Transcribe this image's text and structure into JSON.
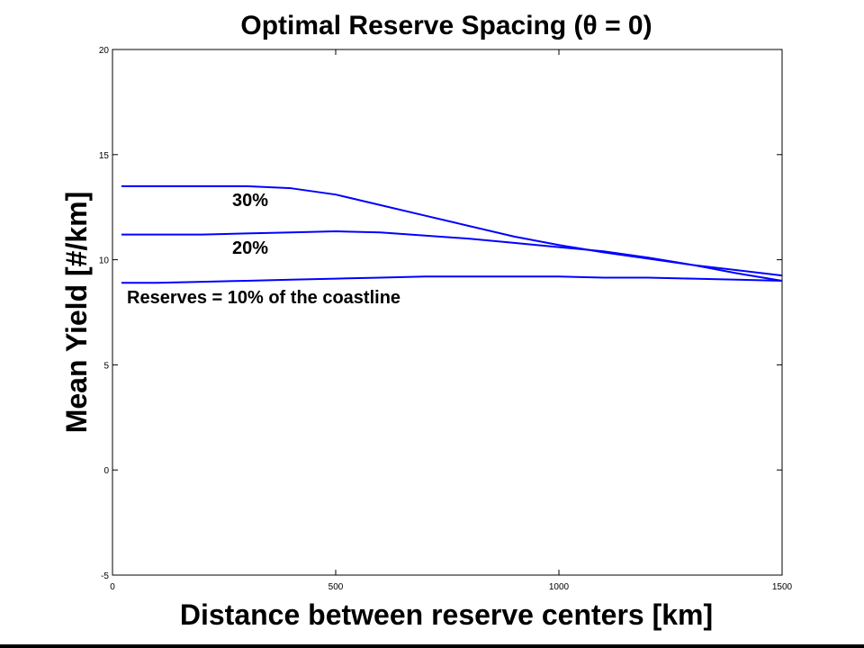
{
  "chart_data": {
    "type": "line",
    "title": "Optimal Reserve Spacing (θ = 0)",
    "xlabel": "Distance between reserve centers [km]",
    "ylabel": "Mean Yield [#/km]",
    "xlim": [
      0,
      1500
    ],
    "ylim": [
      -5,
      20
    ],
    "xticks": [
      0,
      500,
      1000,
      1500
    ],
    "yticks": [
      -5,
      0,
      5,
      10,
      15,
      20
    ],
    "grid": false,
    "color": "#0000ff",
    "series": [
      {
        "name": "30%",
        "x": [
          20,
          100,
          200,
          300,
          400,
          500,
          600,
          700,
          800,
          900,
          1000,
          1100,
          1200,
          1300,
          1400,
          1500
        ],
        "y": [
          13.5,
          13.5,
          13.5,
          13.5,
          13.4,
          13.1,
          12.6,
          12.1,
          11.6,
          11.1,
          10.7,
          10.35,
          10.05,
          9.75,
          9.5,
          9.25
        ]
      },
      {
        "name": "20%",
        "x": [
          20,
          100,
          200,
          300,
          400,
          500,
          600,
          700,
          800,
          900,
          1000,
          1100,
          1200,
          1300,
          1400,
          1500
        ],
        "y": [
          11.2,
          11.2,
          11.2,
          11.25,
          11.3,
          11.35,
          11.3,
          11.15,
          11.0,
          10.8,
          10.6,
          10.4,
          10.1,
          9.75,
          9.35,
          9.0
        ]
      },
      {
        "name": "Reserves = 10% of the coastline",
        "x": [
          20,
          100,
          200,
          300,
          400,
          500,
          600,
          700,
          800,
          900,
          1000,
          1100,
          1200,
          1300,
          1400,
          1500
        ],
        "y": [
          8.9,
          8.9,
          8.95,
          9.0,
          9.05,
          9.1,
          9.15,
          9.2,
          9.2,
          9.2,
          9.2,
          9.15,
          9.15,
          9.1,
          9.05,
          9.0
        ]
      }
    ],
    "annotations": [
      "30%",
      "20%",
      "Reserves = 10% of the coastline"
    ]
  }
}
